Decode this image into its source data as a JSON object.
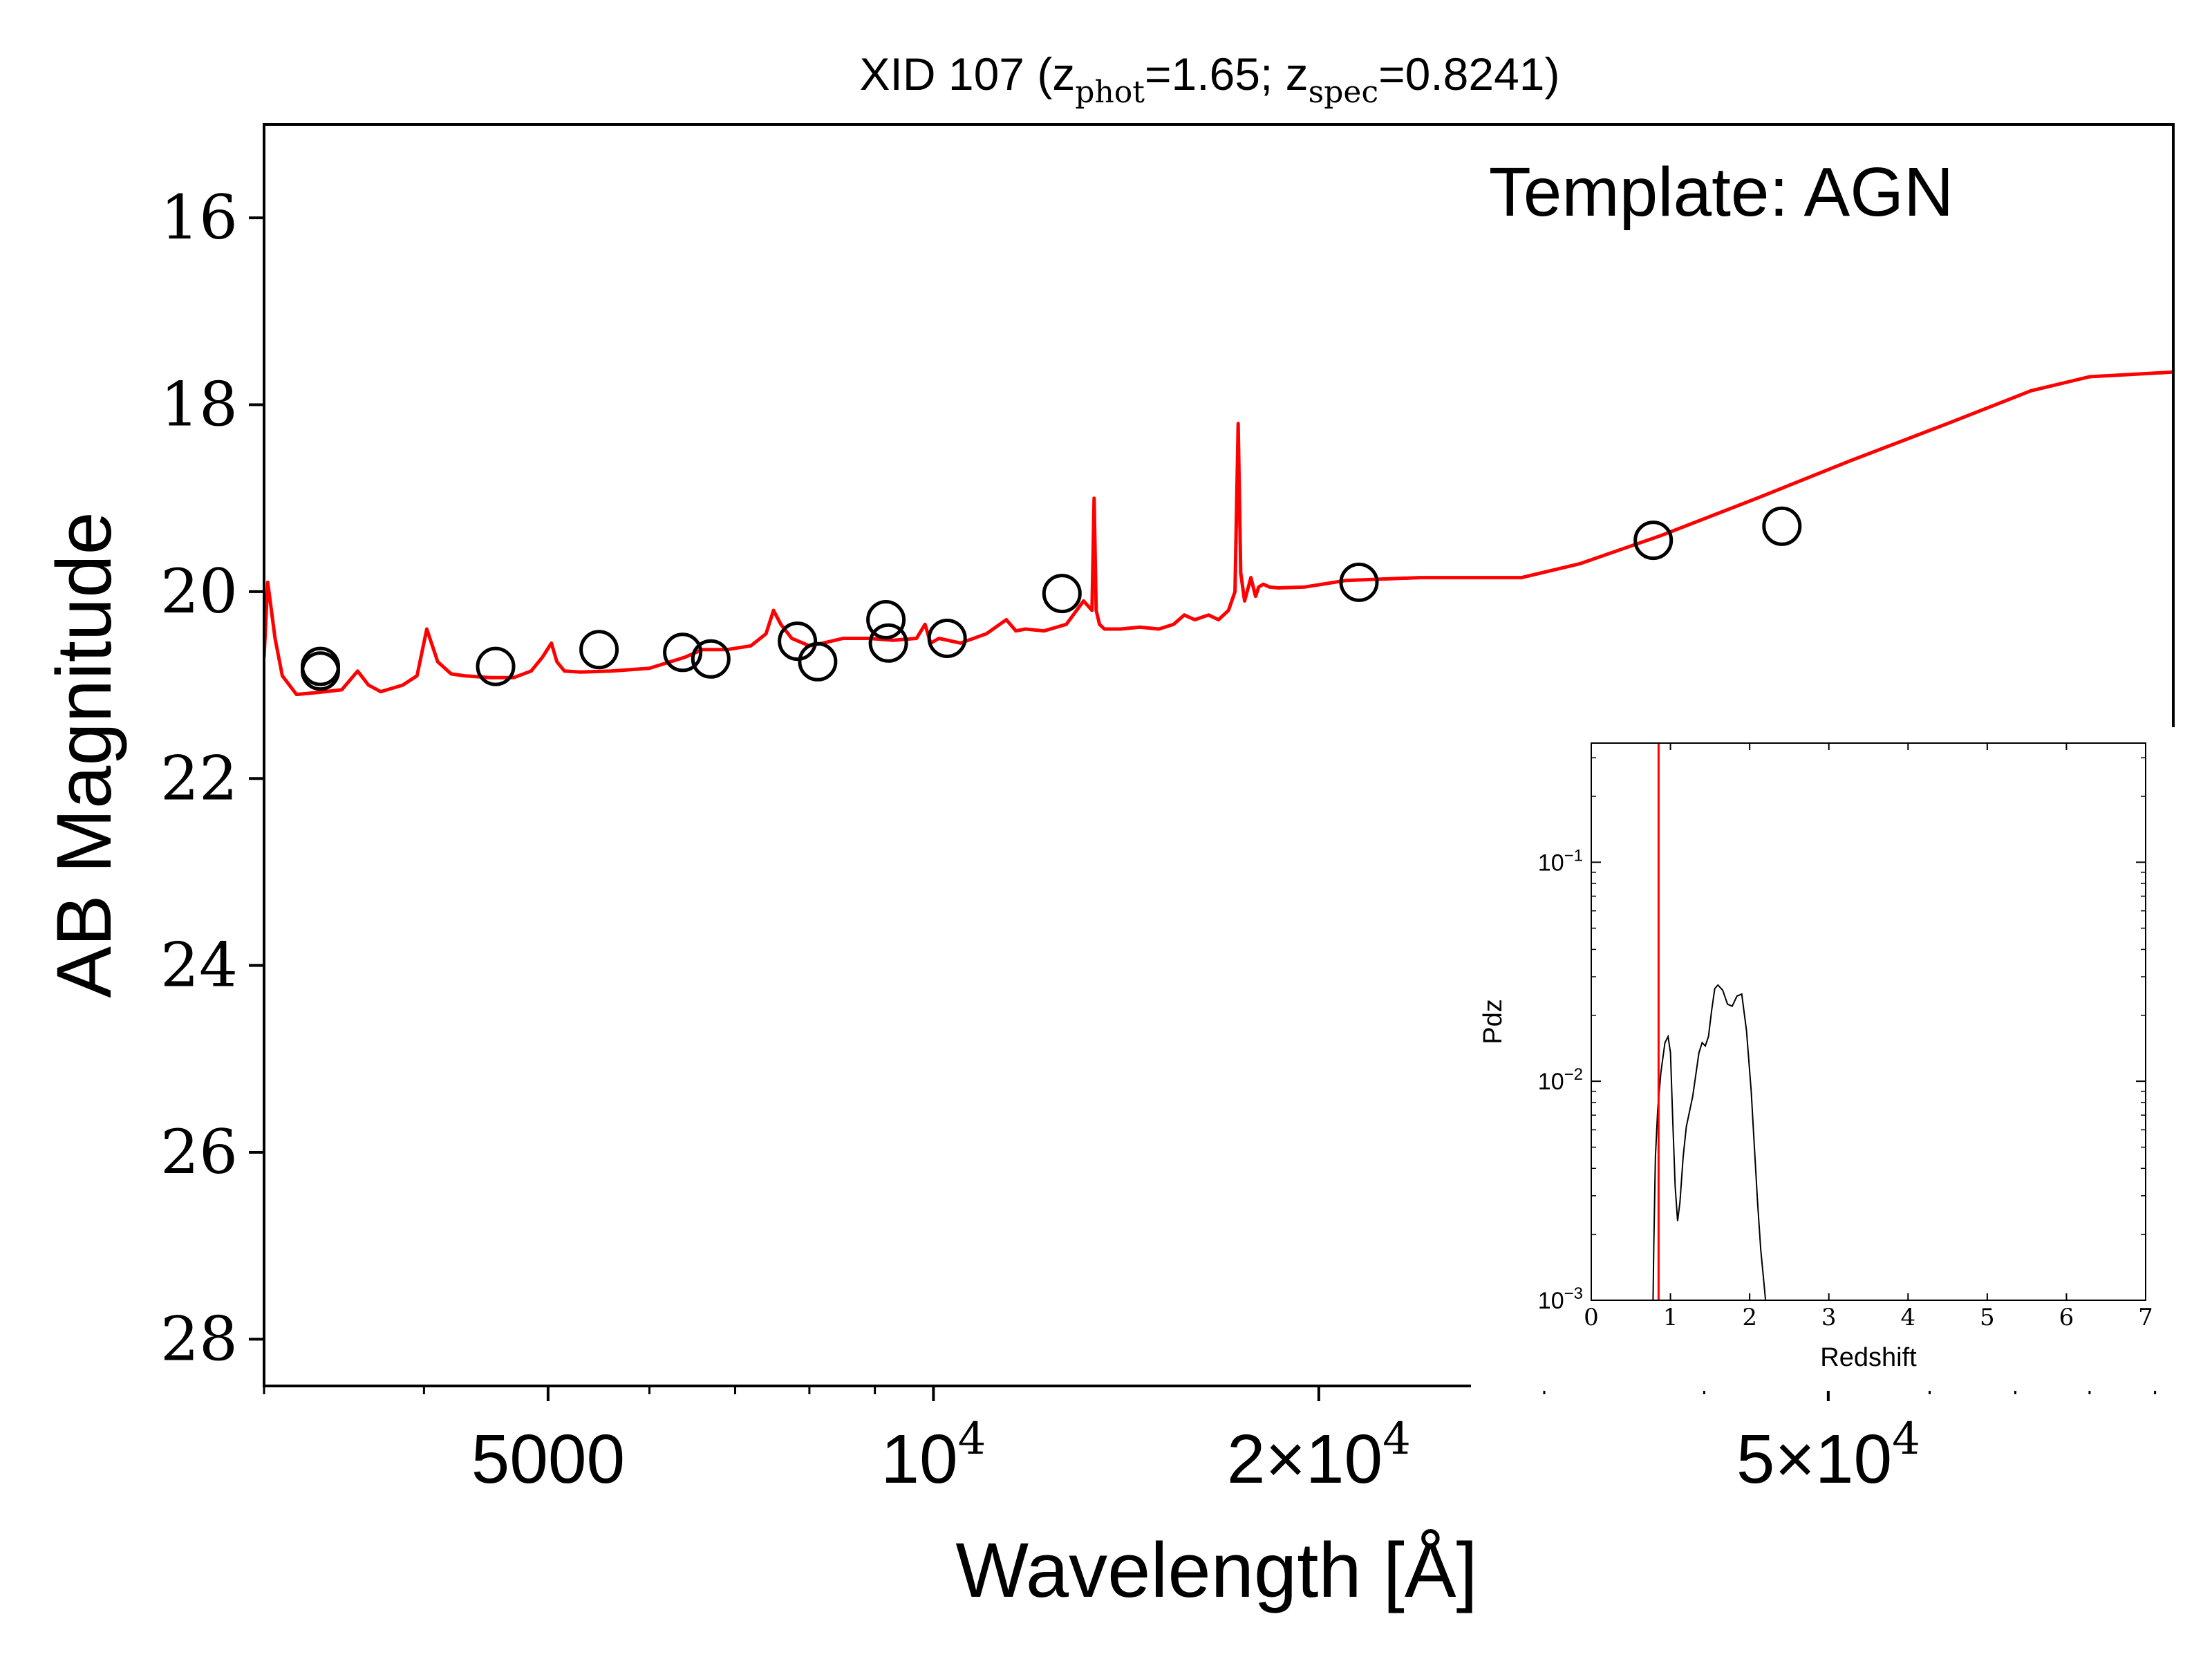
{
  "chart_data": [
    {
      "type": "scatter",
      "title_parts": {
        "prefix": "XID 107 (z",
        "sub1": "phot",
        "mid": "=1.65; z",
        "sub2": "spec",
        "suffix": "=0.8241)"
      },
      "xlabel": "Wavelength [Å]",
      "ylabel": "AB Magnitude",
      "annotation": "Template: AGN",
      "x_scale": "log",
      "xlim": [
        3000,
        93000
      ],
      "ylim": [
        28.5,
        15
      ],
      "y_inverted": true,
      "y_ticks": [
        16,
        18,
        20,
        22,
        24,
        26,
        28
      ],
      "y_tick_labels": [
        "16",
        "18",
        "20",
        "22",
        "24",
        "26",
        "28"
      ],
      "x_ticks": [
        {
          "value": 5000,
          "mantissa": "5000",
          "exp": ""
        },
        {
          "value": 10000,
          "mantissa": "10",
          "exp": "4"
        },
        {
          "value": 20000,
          "mantissa": "2×10",
          "exp": "4"
        },
        {
          "value": 50000,
          "mantissa": "5×10",
          "exp": "4"
        }
      ],
      "x_minor_ticks": [
        3000,
        4000,
        6000,
        7000,
        8000,
        9000,
        30000,
        40000,
        60000,
        70000,
        80000,
        90000
      ],
      "series": [
        {
          "kind": "line",
          "color": "#ff0000",
          "x": [
            3000,
            3020,
            3060,
            3100,
            3180,
            3300,
            3450,
            3550,
            3620,
            3700,
            3850,
            3950,
            4020,
            4100,
            4200,
            4300,
            4500,
            4700,
            4850,
            4950,
            5030,
            5080,
            5150,
            5300,
            5600,
            6000,
            6400,
            6600,
            6900,
            7200,
            7400,
            7500,
            7600,
            7750,
            8000,
            8200,
            8500,
            8900,
            9300,
            9700,
            9850,
            9950,
            10100,
            10500,
            11000,
            11400,
            11600,
            11800,
            12200,
            12700,
            13100,
            13300,
            13350,
            13400,
            13480,
            13600,
            14000,
            14500,
            15000,
            15400,
            15700,
            16000,
            16400,
            16700,
            17000,
            17200,
            17300,
            17380,
            17500,
            17700,
            17850,
            17950,
            18100,
            18300,
            18600,
            19500,
            21000,
            24000,
            28000,
            28800,
            32000,
            37000,
            44000,
            52000,
            62000,
            72000,
            80000,
            93000
          ],
          "y": [
            20.7,
            19.9,
            20.5,
            20.9,
            21.1,
            21.08,
            21.05,
            20.85,
            21.0,
            21.07,
            21.0,
            20.9,
            20.4,
            20.75,
            20.88,
            20.9,
            20.92,
            20.92,
            20.85,
            20.7,
            20.55,
            20.75,
            20.85,
            20.86,
            20.85,
            20.82,
            20.7,
            20.62,
            20.62,
            20.58,
            20.45,
            20.2,
            20.35,
            20.5,
            20.58,
            20.55,
            20.5,
            20.5,
            20.52,
            20.5,
            20.35,
            20.55,
            20.5,
            20.55,
            20.45,
            20.3,
            20.42,
            20.4,
            20.42,
            20.35,
            20.1,
            20.2,
            19.0,
            20.2,
            20.35,
            20.4,
            20.4,
            20.38,
            20.4,
            20.35,
            20.25,
            20.3,
            20.25,
            20.3,
            20.2,
            20.0,
            18.2,
            19.8,
            20.1,
            19.85,
            20.05,
            19.95,
            19.92,
            19.95,
            19.96,
            19.95,
            19.88,
            19.85,
            19.85,
            19.85,
            19.7,
            19.4,
            19.0,
            18.6,
            18.2,
            17.85,
            17.7,
            17.65
          ]
        },
        {
          "kind": "scatter",
          "marker": "open-circle",
          "x": [
            3320,
            3320,
            4550,
            5480,
            6370,
            6700,
            7830,
            8120,
            9180,
            9220,
            10250,
            12600,
            21500,
            36500,
            46000
          ],
          "y": [
            20.8,
            20.85,
            20.8,
            20.62,
            20.65,
            20.72,
            20.53,
            20.75,
            20.3,
            20.55,
            20.5,
            20.02,
            19.9,
            19.45,
            19.3
          ]
        }
      ]
    },
    {
      "type": "line",
      "inset": true,
      "xlabel": "Redshift",
      "ylabel": "Pdz",
      "x_scale": "linear",
      "y_scale": "log",
      "xlim": [
        0,
        7
      ],
      "ylim": [
        0.001,
        0.35
      ],
      "x_ticks": [
        0,
        1,
        2,
        3,
        4,
        5,
        6,
        7
      ],
      "x_tick_labels": [
        "0",
        "1",
        "2",
        "3",
        "4",
        "5",
        "6",
        "7"
      ],
      "y_ticks": [
        {
          "value": 0.1,
          "base": "10",
          "exp": "−1"
        },
        {
          "value": 0.01,
          "base": "10",
          "exp": "−2"
        },
        {
          "value": 0.001,
          "base": "10",
          "exp": "−3"
        }
      ],
      "vline": {
        "x": 0.85,
        "color": "#ff0000"
      },
      "series": [
        {
          "color": "#000000",
          "x": [
            0.78,
            0.79,
            0.81,
            0.84,
            0.88,
            0.93,
            0.97,
            1.0,
            1.03,
            1.06,
            1.09,
            1.12,
            1.16,
            1.2,
            1.28,
            1.36,
            1.4,
            1.44,
            1.48,
            1.52,
            1.56,
            1.6,
            1.66,
            1.72,
            1.78,
            1.84,
            1.9,
            1.96,
            2.02,
            2.06,
            2.1,
            2.14,
            2.18,
            2.2,
            2.22
          ],
          "y": [
            0.001,
            0.0018,
            0.0045,
            0.0075,
            0.011,
            0.015,
            0.016,
            0.0135,
            0.0065,
            0.0033,
            0.0023,
            0.0028,
            0.0045,
            0.0062,
            0.0085,
            0.0135,
            0.015,
            0.0145,
            0.016,
            0.021,
            0.0265,
            0.0275,
            0.026,
            0.0225,
            0.022,
            0.0245,
            0.025,
            0.017,
            0.009,
            0.005,
            0.0028,
            0.0017,
            0.0012,
            0.001,
            0.001
          ]
        }
      ]
    }
  ]
}
